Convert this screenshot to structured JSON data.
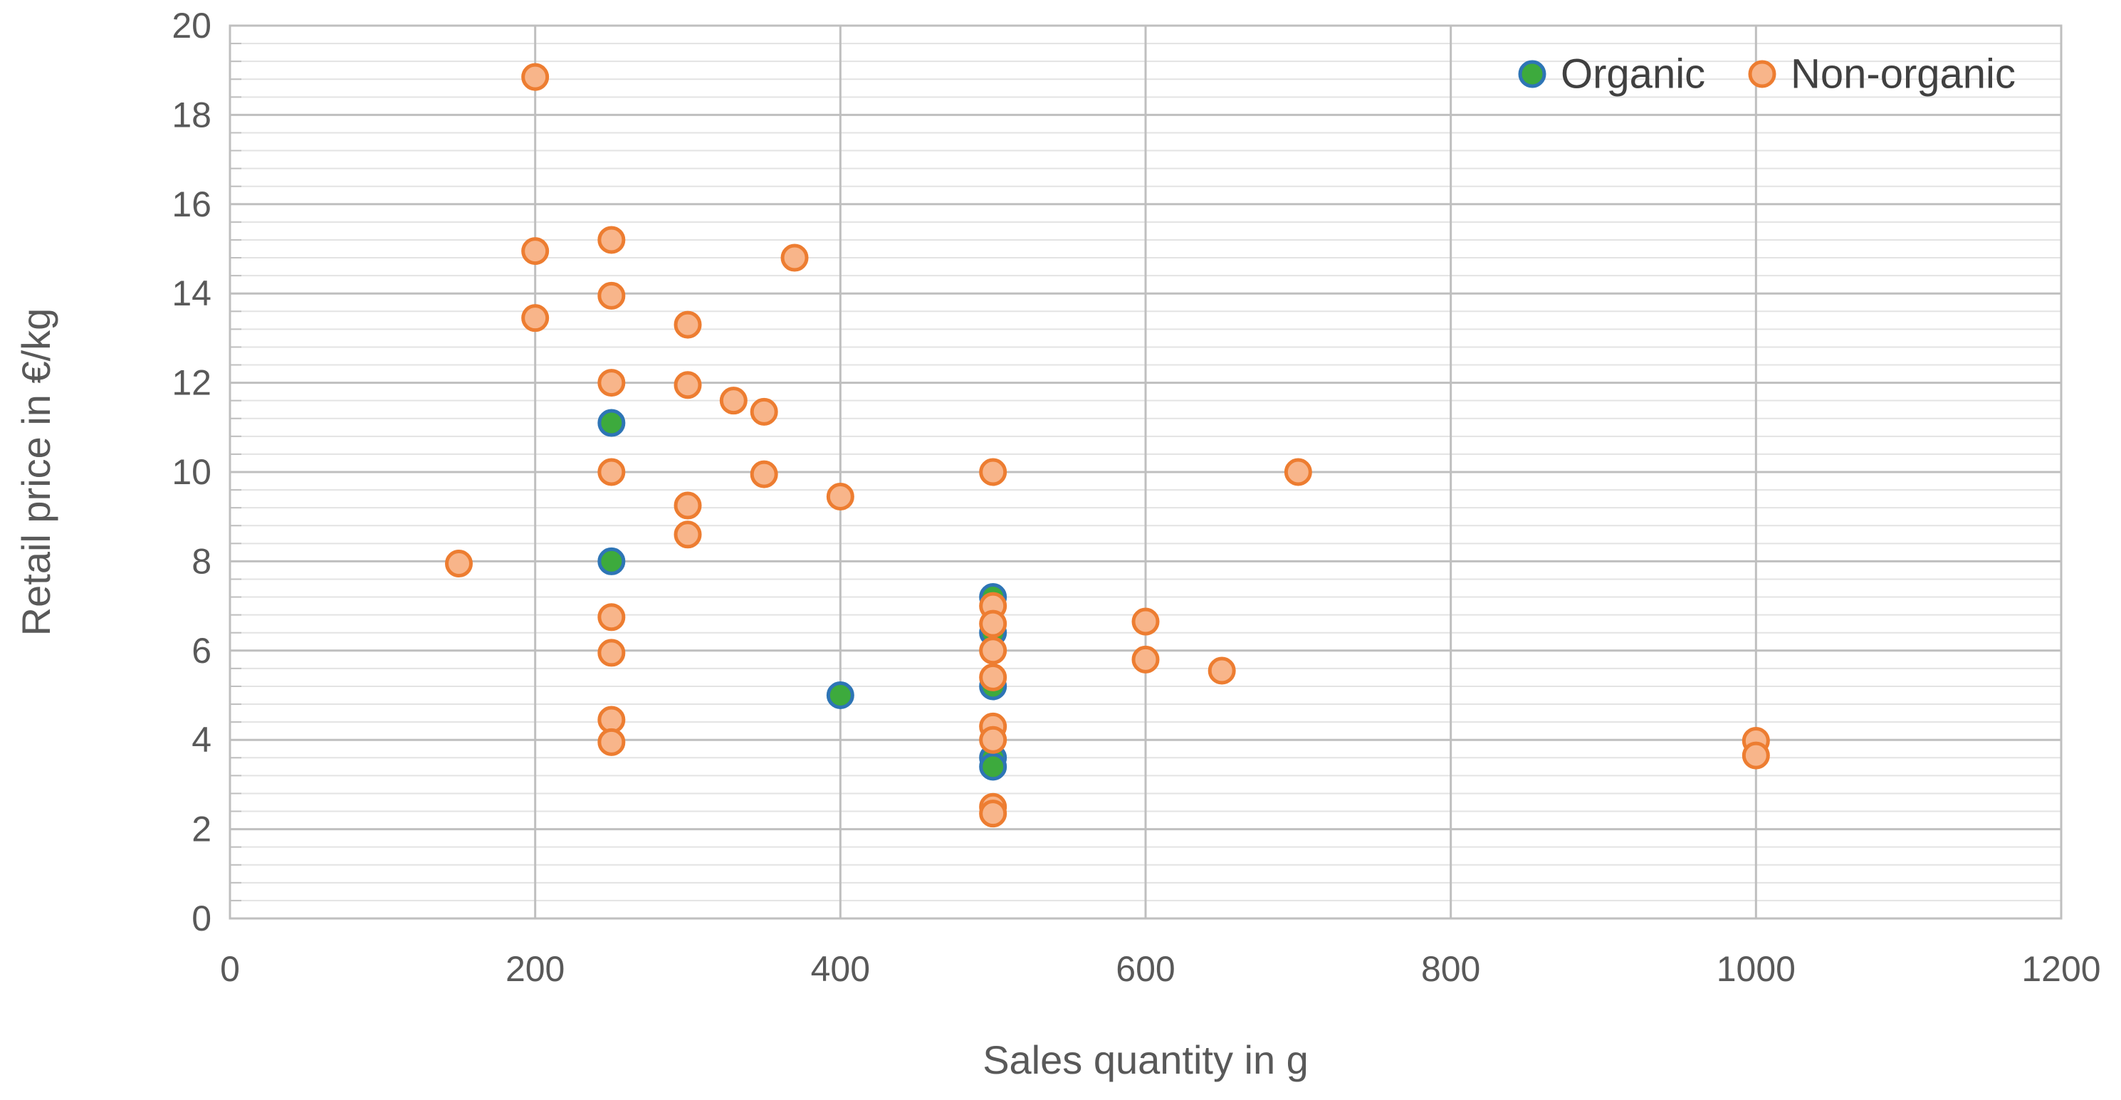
{
  "chart_data": {
    "type": "scatter",
    "xlabel": "Sales quantity in g",
    "ylabel": "Retail price in €/kg",
    "xlim": [
      0,
      1200
    ],
    "ylim": [
      0,
      20
    ],
    "x_ticks": [
      "0",
      "200",
      "400",
      "600",
      "800",
      "1000",
      "1200"
    ],
    "y_ticks": [
      "0",
      "2",
      "4",
      "6",
      "8",
      "10",
      "12",
      "14",
      "16",
      "18",
      "20"
    ],
    "x_major_step": 200,
    "y_major_step": 2,
    "y_minor_step": 0.4,
    "grid": true,
    "legend_position": "top-right",
    "colors": {
      "organic_fill": "#3DAA3D",
      "organic_edge": "#2E75B6",
      "nonorganic_fill": "#F8B58A",
      "nonorganic_edge": "#ED7D31",
      "major_grid": "#BFBFBF",
      "minor_grid": "#E3E3E3"
    },
    "series": [
      {
        "name": "Organic",
        "points": [
          [
            250,
            11.1
          ],
          [
            250,
            8.0
          ],
          [
            400,
            5.0
          ],
          [
            500,
            7.2
          ],
          [
            500,
            6.4
          ],
          [
            500,
            5.2
          ],
          [
            500,
            3.6
          ],
          [
            500,
            3.4
          ]
        ]
      },
      {
        "name": "Non-organic",
        "points": [
          [
            150,
            7.95
          ],
          [
            200,
            18.85
          ],
          [
            200,
            14.95
          ],
          [
            200,
            13.45
          ],
          [
            250,
            15.2
          ],
          [
            250,
            13.95
          ],
          [
            250,
            12.0
          ],
          [
            250,
            10.0
          ],
          [
            250,
            6.75
          ],
          [
            250,
            5.95
          ],
          [
            250,
            4.45
          ],
          [
            250,
            3.95
          ],
          [
            300,
            13.3
          ],
          [
            300,
            11.95
          ],
          [
            300,
            9.25
          ],
          [
            300,
            8.6
          ],
          [
            330,
            11.6
          ],
          [
            350,
            11.35
          ],
          [
            350,
            9.95
          ],
          [
            370,
            14.8
          ],
          [
            400,
            9.45
          ],
          [
            500,
            10.0
          ],
          [
            500,
            7.0
          ],
          [
            500,
            6.6
          ],
          [
            500,
            6.0
          ],
          [
            500,
            5.4
          ],
          [
            500,
            4.3
          ],
          [
            500,
            4.0
          ],
          [
            500,
            2.5
          ],
          [
            500,
            2.35
          ],
          [
            600,
            6.65
          ],
          [
            600,
            5.8
          ],
          [
            650,
            5.55
          ],
          [
            700,
            10.0
          ],
          [
            1000,
            3.98
          ],
          [
            1000,
            3.65
          ]
        ]
      }
    ]
  }
}
